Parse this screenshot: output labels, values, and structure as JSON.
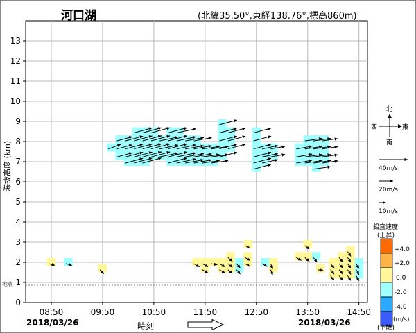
{
  "header": {
    "title": "河口湖",
    "coords": "(北緯35.50°,東経138.76°,標高860m)"
  },
  "footer": {
    "date_left": "2018/03/26",
    "date_right": "2018/03/26",
    "xlabel": "時刻"
  },
  "compass": {
    "north": "北",
    "south": "南",
    "east": "東",
    "west": "西"
  },
  "wind_scale": [
    "40m/s",
    "20m/s",
    "10m/s"
  ],
  "vv_legend": {
    "title": "鉛直速度",
    "top_note": "(上昇)",
    "bottom_note": "(下降)",
    "unit": "(m/s)",
    "labels": [
      "+4.0",
      "+2.0",
      "0.0",
      "-2.0",
      "-4.0"
    ],
    "colors": [
      "#ff6a00",
      "#ffb347",
      "#fff799",
      "#a0ffff",
      "#2aa9ff",
      "#3a5cff"
    ]
  },
  "chart_data": {
    "type": "wind-profiler",
    "ylabel": "海抜高度 (km)",
    "ground_label": "地表",
    "ground_height": 0.86,
    "ylim": [
      0,
      14
    ],
    "yticks": [
      "0",
      "1",
      "2",
      "3",
      "4",
      "5",
      "6",
      "7",
      "8",
      "9",
      "10",
      "11",
      "12",
      "13"
    ],
    "xticks": [
      "08:50",
      "09:50",
      "10:50",
      "11:50",
      "12:50",
      "13:50",
      "14:50"
    ],
    "grid": true,
    "time_start": "08:20",
    "time_end": "15:00",
    "colors": {
      "updraft": "#fff799",
      "neutral": "#a0ffff",
      "orange": "#ffb347"
    },
    "groups": [
      {
        "time": "10:00",
        "color": "neutral",
        "heights": [
          7.7
        ],
        "speed": 18,
        "dir": 250
      },
      {
        "time": "10:10",
        "color": "neutral",
        "heights": [
          7.3,
          7.7,
          8.1
        ],
        "speed": 22,
        "dir": 255
      },
      {
        "time": "10:20",
        "color": "neutral",
        "heights": [
          7.0,
          7.3,
          7.7,
          8.1
        ],
        "speed": 25,
        "dir": 255
      },
      {
        "time": "10:30",
        "color": "neutral",
        "heights": [
          7.0,
          7.3,
          7.7,
          8.1,
          8.5
        ],
        "speed": 26,
        "dir": 255
      },
      {
        "time": "10:40",
        "color": "neutral",
        "heights": [
          7.0,
          7.3,
          7.7,
          8.1,
          8.5
        ],
        "speed": 27,
        "dir": 255
      },
      {
        "time": "10:50",
        "color": "neutral",
        "heights": [
          7.3,
          7.7,
          8.1,
          8.5
        ],
        "speed": 27,
        "dir": 255
      },
      {
        "time": "11:00",
        "color": "neutral",
        "heights": [
          7.3,
          7.7,
          8.1
        ],
        "speed": 26,
        "dir": 258
      },
      {
        "time": "11:10",
        "color": "neutral",
        "heights": [
          7.0,
          7.3,
          7.7,
          8.1,
          8.5
        ],
        "speed": 27,
        "dir": 255
      },
      {
        "time": "11:20",
        "color": "neutral",
        "heights": [
          7.0,
          7.3,
          7.7,
          8.1,
          8.5
        ],
        "speed": 27,
        "dir": 258
      },
      {
        "time": "11:30",
        "color": "neutral",
        "heights": [
          7.0,
          7.3,
          7.7,
          8.1
        ],
        "speed": 26,
        "dir": 260
      },
      {
        "time": "11:40",
        "color": "neutral",
        "heights": [
          7.0,
          7.3,
          7.7,
          8.1
        ],
        "speed": 25,
        "dir": 260
      },
      {
        "time": "11:50",
        "color": "neutral",
        "heights": [
          7.0,
          7.3,
          7.7
        ],
        "speed": 24,
        "dir": 262
      },
      {
        "time": "12:00",
        "color": "neutral",
        "heights": [
          7.0,
          7.3,
          7.7
        ],
        "speed": 24,
        "dir": 262
      },
      {
        "time": "12:10",
        "color": "neutral",
        "heights": [
          7.3,
          7.7,
          8.1,
          8.5,
          8.9
        ],
        "speed": 25,
        "dir": 255
      },
      {
        "time": "12:20",
        "color": "neutral",
        "heights": [
          7.7,
          8.1,
          8.5
        ],
        "speed": 25,
        "dir": 255
      },
      {
        "time": "12:50",
        "color": "neutral",
        "heights": [
          6.7,
          7.0,
          7.3,
          7.7,
          8.1,
          8.5
        ],
        "speed": 25,
        "dir": 255
      },
      {
        "time": "13:00",
        "color": "neutral",
        "heights": [
          7.0,
          7.3,
          7.7
        ],
        "speed": 22,
        "dir": 258
      },
      {
        "time": "13:10",
        "color": "neutral",
        "heights": [
          7.3,
          7.7
        ],
        "speed": 20,
        "dir": 260
      },
      {
        "time": "13:40",
        "color": "neutral",
        "heights": [
          7.0,
          7.3,
          7.7
        ],
        "speed": 22,
        "dir": 260
      },
      {
        "time": "13:50",
        "color": "neutral",
        "heights": [
          7.0,
          7.3,
          7.7,
          8.1
        ],
        "speed": 24,
        "dir": 262
      },
      {
        "time": "14:00",
        "color": "neutral",
        "heights": [
          6.7,
          7.0,
          7.3,
          7.7,
          8.1
        ],
        "speed": 24,
        "dir": 262
      },
      {
        "time": "14:10",
        "color": "neutral",
        "heights": [
          7.0,
          7.3,
          7.7,
          8.1
        ],
        "speed": 22,
        "dir": 262
      },
      {
        "time": "08:50",
        "color": "updraft",
        "heights": [
          2.0
        ],
        "speed": 9,
        "dir": 285
      },
      {
        "time": "09:10",
        "color": "neutral",
        "heights": [
          2.0
        ],
        "speed": 9,
        "dir": 285
      },
      {
        "time": "09:50",
        "color": "updraft",
        "heights": [
          1.7
        ],
        "speed": 8,
        "dir": 315
      },
      {
        "time": "11:40",
        "color": "updraft",
        "heights": [
          2.0
        ],
        "speed": 9,
        "dir": 300
      },
      {
        "time": "11:50",
        "color": "updraft",
        "heights": [
          1.7,
          2.0
        ],
        "speed": 9,
        "dir": 300
      },
      {
        "time": "12:00",
        "color": "updraft",
        "heights": [
          2.0
        ],
        "speed": 9,
        "dir": 280
      },
      {
        "time": "12:10",
        "color": "updraft",
        "heights": [
          1.7,
          2.0
        ],
        "speed": 9,
        "dir": 300
      },
      {
        "time": "12:20",
        "color": "updraft",
        "heights": [
          1.7,
          2.0,
          2.3
        ],
        "speed": 8,
        "dir": 310
      },
      {
        "time": "12:30",
        "color": "neutral",
        "heights": [
          1.7,
          2.0
        ],
        "speed": 8,
        "dir": 320
      },
      {
        "time": "12:40",
        "color": "updraft",
        "heights": [
          2.0,
          2.3,
          2.9
        ],
        "speed": 8,
        "dir": 300
      },
      {
        "time": "13:00",
        "color": "neutral",
        "heights": [
          2.0
        ],
        "speed": 8,
        "dir": 300
      },
      {
        "time": "13:10",
        "color": "updraft",
        "heights": [
          1.7,
          2.0
        ],
        "speed": 8,
        "dir": 340
      },
      {
        "time": "13:40",
        "color": "updraft",
        "heights": [
          2.3
        ],
        "speed": 8,
        "dir": 300
      },
      {
        "time": "13:50",
        "color": "updraft",
        "heights": [
          2.3,
          2.9
        ],
        "speed": 8,
        "dir": 310
      },
      {
        "time": "14:00",
        "color": "neutral",
        "heights": [
          2.3
        ],
        "speed": 8,
        "dir": 320
      },
      {
        "time": "14:05",
        "color": "updraft",
        "heights": [
          1.7
        ],
        "speed": 8,
        "dir": 280
      },
      {
        "time": "14:20",
        "color": "updraft",
        "heights": [
          1.4,
          1.7,
          2.0
        ],
        "speed": 8,
        "dir": 320
      },
      {
        "time": "14:30",
        "color": "updraft",
        "heights": [
          1.4,
          1.7,
          2.0,
          2.3
        ],
        "speed": 8,
        "dir": 320
      },
      {
        "time": "14:40",
        "color": "updraft",
        "heights": [
          1.4,
          1.7,
          2.0,
          2.3,
          2.6
        ],
        "speed": 8,
        "dir": 325
      },
      {
        "time": "14:50",
        "color": "neutral",
        "heights": [
          1.4,
          1.7,
          2.0
        ],
        "speed": 8,
        "dir": 330
      }
    ]
  }
}
